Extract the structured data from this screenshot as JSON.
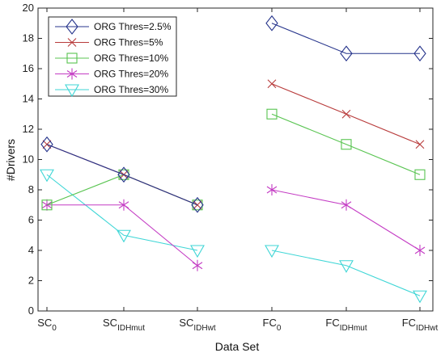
{
  "chart_data": {
    "type": "line",
    "xlabel": "Data Set",
    "ylabel": "#Drivers",
    "ylim": [
      0,
      20
    ],
    "yticks": [
      0,
      2,
      4,
      6,
      8,
      10,
      12,
      14,
      16,
      18,
      20
    ],
    "grid": false,
    "legend_position": "top-left",
    "x_ticks": [
      {
        "base": "SC",
        "sub": "0"
      },
      {
        "base": "SC",
        "sub": "IDHmut"
      },
      {
        "base": "SC",
        "sub": "IDHwt"
      },
      {
        "base": "FC",
        "sub": "0"
      },
      {
        "base": "FC",
        "sub": "IDHmut"
      },
      {
        "base": "FC",
        "sub": "IDHwt"
      }
    ],
    "groups": [
      [
        0,
        1,
        2
      ],
      [
        3,
        4,
        5
      ]
    ],
    "series": [
      {
        "name": "ORG Thres=2.5%",
        "color": "#27358c",
        "marker": "diamond",
        "values": [
          11,
          9,
          7,
          19,
          17,
          17
        ]
      },
      {
        "name": "ORG Thres=5%",
        "color": "#b83b3b",
        "marker": "x",
        "values": [
          11,
          9,
          7,
          15,
          13,
          11
        ]
      },
      {
        "name": "ORG Thres=10%",
        "color": "#58c450",
        "marker": "square",
        "values": [
          7,
          9,
          7,
          13,
          11,
          9
        ]
      },
      {
        "name": "ORG Thres=20%",
        "color": "#c43cc4",
        "marker": "asterisk",
        "values": [
          7,
          7,
          3,
          8,
          7,
          4
        ]
      },
      {
        "name": "ORG Thres=30%",
        "color": "#3fd6d6",
        "marker": "triangle-down",
        "values": [
          9,
          5,
          4,
          4,
          3,
          1
        ]
      }
    ]
  }
}
